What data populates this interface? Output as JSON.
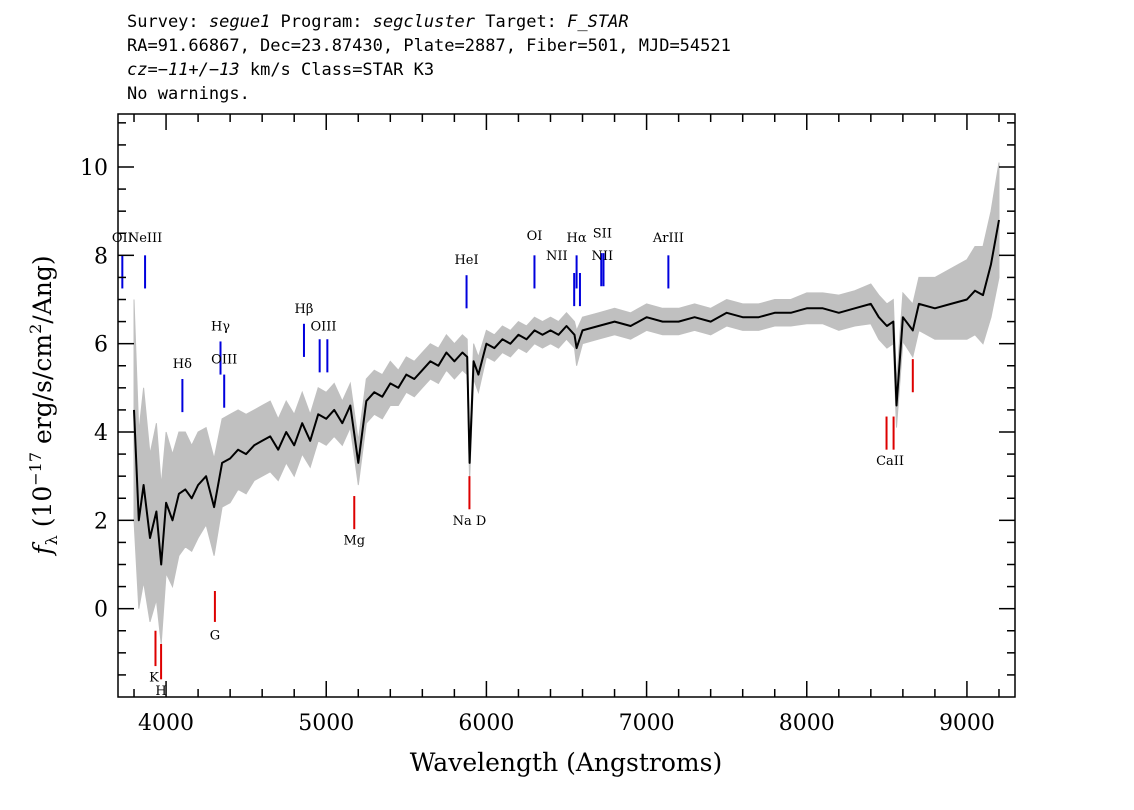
{
  "header": {
    "survey_label": "Survey: ",
    "survey": "segue1",
    "program_label": " Program: ",
    "program": "segcluster",
    "target_label": " Target: ",
    "target": "F_STAR",
    "line2": "RA=91.66867, Dec=23.87430, Plate=2887, Fiber=501, MJD=54521",
    "cz_label": "cz",
    "cz_value": "=−11+/−13",
    "cz_rest": " km/s Class=STAR K3",
    "warnings": "No warnings."
  },
  "colors": {
    "spectrum": "#000000",
    "error": "#c0c0c0",
    "emission": "#0000dd",
    "absorption": "#dd0000"
  },
  "chart_data": {
    "type": "line",
    "xlabel": "Wavelength (Angstroms)",
    "ylabel": "f_λ (10^-17 erg/s/cm^2/Ang)",
    "ylabel_prefix": "f",
    "ylabel_sub": "λ",
    "ylabel_mid": " (10",
    "ylabel_exp1": "−17",
    "ylabel_mid2": " erg/s/cm",
    "ylabel_exp2": "2",
    "ylabel_end": "/Ang)",
    "xlim": [
      3700,
      9300
    ],
    "ylim": [
      -2,
      11.2
    ],
    "xticks": [
      4000,
      5000,
      6000,
      7000,
      8000,
      9000
    ],
    "yticks": [
      0,
      2,
      4,
      6,
      8,
      10
    ],
    "series": [
      {
        "x": [
          3800,
          3830,
          3860,
          3900,
          3940,
          3970,
          4000,
          4040,
          4080,
          4120,
          4160,
          4200,
          4250,
          4300,
          4350,
          4400,
          4450,
          4500,
          4550,
          4600,
          4650,
          4700,
          4750,
          4800,
          4850,
          4900,
          4950,
          5000,
          5050,
          5100,
          5150,
          5200,
          5250,
          5300,
          5350,
          5400,
          5450,
          5500,
          5550,
          5600,
          5650,
          5700,
          5750,
          5800,
          5850,
          5880,
          5895,
          5920,
          5950,
          6000,
          6050,
          6100,
          6150,
          6200,
          6250,
          6300,
          6350,
          6400,
          6450,
          6500,
          6550,
          6563,
          6600,
          6700,
          6800,
          6900,
          7000,
          7100,
          7200,
          7300,
          7400,
          7500,
          7600,
          7700,
          7800,
          7900,
          8000,
          8100,
          8200,
          8300,
          8400,
          8450,
          8500,
          8540,
          8560,
          8600,
          8662,
          8700,
          8800,
          8900,
          9000,
          9050,
          9100,
          9150,
          9200
        ],
        "y": [
          4.5,
          2.0,
          2.8,
          1.6,
          2.2,
          1.0,
          2.4,
          2.0,
          2.6,
          2.7,
          2.5,
          2.8,
          3.0,
          2.3,
          3.3,
          3.4,
          3.6,
          3.5,
          3.7,
          3.8,
          3.9,
          3.6,
          4.0,
          3.7,
          4.2,
          3.8,
          4.4,
          4.3,
          4.5,
          4.2,
          4.6,
          3.3,
          4.7,
          4.9,
          4.8,
          5.1,
          5.0,
          5.3,
          5.2,
          5.4,
          5.6,
          5.5,
          5.8,
          5.6,
          5.8,
          5.7,
          3.3,
          5.6,
          5.3,
          6.0,
          5.9,
          6.1,
          6.0,
          6.2,
          6.1,
          6.3,
          6.2,
          6.3,
          6.2,
          6.4,
          6.2,
          5.9,
          6.3,
          6.4,
          6.5,
          6.4,
          6.6,
          6.5,
          6.5,
          6.6,
          6.5,
          6.7,
          6.6,
          6.6,
          6.7,
          6.7,
          6.8,
          6.8,
          6.7,
          6.8,
          6.9,
          6.6,
          6.4,
          6.5,
          4.6,
          6.6,
          6.3,
          6.9,
          6.8,
          6.9,
          7.0,
          7.2,
          7.1,
          7.8,
          8.8
        ],
        "err": [
          2.5,
          2.0,
          2.2,
          1.9,
          2.0,
          1.8,
          1.6,
          1.5,
          1.4,
          1.3,
          1.2,
          1.2,
          1.1,
          1.1,
          1.0,
          1.0,
          0.9,
          0.9,
          0.8,
          0.8,
          0.8,
          0.7,
          0.7,
          0.7,
          0.7,
          0.6,
          0.6,
          0.6,
          0.6,
          0.5,
          0.5,
          0.5,
          0.5,
          0.5,
          0.5,
          0.5,
          0.4,
          0.4,
          0.4,
          0.4,
          0.4,
          0.4,
          0.4,
          0.4,
          0.4,
          0.4,
          0.4,
          0.4,
          0.4,
          0.3,
          0.3,
          0.3,
          0.3,
          0.3,
          0.3,
          0.3,
          0.3,
          0.3,
          0.3,
          0.3,
          0.3,
          0.4,
          0.3,
          0.3,
          0.3,
          0.3,
          0.3,
          0.3,
          0.3,
          0.3,
          0.3,
          0.3,
          0.3,
          0.3,
          0.3,
          0.3,
          0.35,
          0.35,
          0.4,
          0.4,
          0.45,
          0.5,
          0.5,
          0.5,
          0.5,
          0.55,
          0.6,
          0.6,
          0.7,
          0.8,
          0.9,
          1.0,
          1.1,
          1.2,
          1.3
        ]
      }
    ],
    "emission_lines": [
      {
        "label": "OII",
        "wave": 3727,
        "ymin": 7.25,
        "ymax": 8.0
      },
      {
        "label": "NeIII",
        "wave": 3869,
        "ymin": 7.25,
        "ymax": 8.0
      },
      {
        "label": "Hδ",
        "wave": 4102,
        "ymin": 4.45,
        "ymax": 5.2
      },
      {
        "label": "Hγ",
        "wave": 4340,
        "ymin": 5.3,
        "ymax": 6.05
      },
      {
        "label": "OIII",
        "wave": 4363,
        "ymin": 4.55,
        "ymax": 5.3
      },
      {
        "label": "Hβ",
        "wave": 4861,
        "ymin": 5.7,
        "ymax": 6.45
      },
      {
        "label": "OIII",
        "wave": 4959,
        "ymin": 5.35,
        "ymax": 6.1
      },
      {
        "label": "OIII",
        "wave": 5007,
        "ymin": 5.35,
        "ymax": 6.1
      },
      {
        "label": "HeI",
        "wave": 5876,
        "ymin": 6.8,
        "ymax": 7.55
      },
      {
        "label": "OI",
        "wave": 6300,
        "ymin": 7.25,
        "ymax": 8.0
      },
      {
        "label": "NII",
        "wave": 6548,
        "ymin": 6.85,
        "ymax": 7.6
      },
      {
        "label": "Hα",
        "wave": 6563,
        "ymin": 7.25,
        "ymax": 8.0
      },
      {
        "label": "NII",
        "wave": 6584,
        "ymin": 6.85,
        "ymax": 7.6
      },
      {
        "label": "SII",
        "wave": 6717,
        "ymin": 7.3,
        "ymax": 8.05
      },
      {
        "label": "SII",
        "wave": 6731,
        "ymin": 7.3,
        "ymax": 8.05
      },
      {
        "label": "ArIII",
        "wave": 7136,
        "ymin": 7.25,
        "ymax": 8.0
      }
    ],
    "emission_labels": [
      {
        "text": "OII",
        "wave": 3727,
        "y": 8.3
      },
      {
        "text": "NeIII",
        "wave": 3869,
        "y": 8.3
      },
      {
        "text": "Hδ",
        "wave": 4102,
        "y": 5.45
      },
      {
        "text": "Hγ",
        "wave": 4340,
        "y": 6.3
      },
      {
        "text": "OIII",
        "wave": 4363,
        "y": 5.55
      },
      {
        "text": "Hβ",
        "wave": 4861,
        "y": 6.7
      },
      {
        "text": "OIII",
        "wave": 4983,
        "y": 6.3
      },
      {
        "text": "HeI",
        "wave": 5876,
        "y": 7.8
      },
      {
        "text": "OI",
        "wave": 6300,
        "y": 8.35
      },
      {
        "text": "NII",
        "wave": 6440,
        "y": 7.9
      },
      {
        "text": "Hα",
        "wave": 6563,
        "y": 8.3
      },
      {
        "text": "SII",
        "wave": 6724,
        "y": 8.4
      },
      {
        "text": "NII",
        "wave": 6724,
        "y": 7.9
      },
      {
        "text": "ArIII",
        "wave": 7136,
        "y": 8.3
      }
    ],
    "absorption_lines": [
      {
        "label": "K",
        "wave": 3934,
        "ymin": -1.3,
        "ymax": -0.5
      },
      {
        "label": "H",
        "wave": 3969,
        "ymin": -1.6,
        "ymax": -0.8
      },
      {
        "label": "G",
        "wave": 4305,
        "ymin": -0.3,
        "ymax": 0.4
      },
      {
        "label": "Mg",
        "wave": 5175,
        "ymin": 1.8,
        "ymax": 2.55
      },
      {
        "label": "Na D",
        "wave": 5894,
        "ymin": 2.25,
        "ymax": 3.0
      },
      {
        "label": "CaII",
        "wave": 8498,
        "ymin": 3.6,
        "ymax": 4.35
      },
      {
        "label": "CaII",
        "wave": 8542,
        "ymin": 3.6,
        "ymax": 4.35
      },
      {
        "label": "CaII",
        "wave": 8662,
        "ymin": 4.9,
        "ymax": 5.65
      }
    ],
    "absorption_labels": [
      {
        "text": "K",
        "wave": 3925,
        "y": -1.65
      },
      {
        "text": "H",
        "wave": 3969,
        "y": -1.95
      },
      {
        "text": "G",
        "wave": 4305,
        "y": -0.7
      },
      {
        "text": "Mg",
        "wave": 5175,
        "y": 1.45
      },
      {
        "text": "Na D",
        "wave": 5894,
        "y": 1.9
      },
      {
        "text": "CaII",
        "wave": 8520,
        "y": 3.25
      }
    ]
  }
}
